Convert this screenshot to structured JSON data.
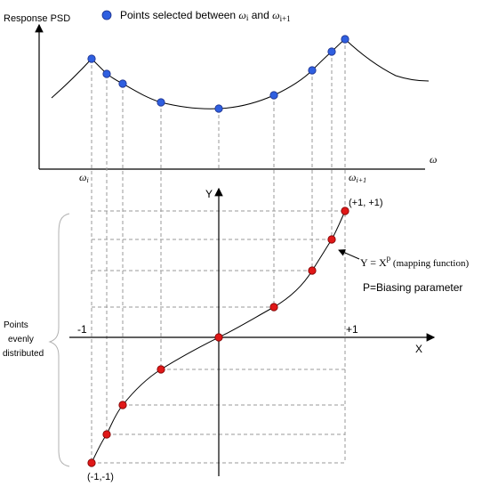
{
  "top": {
    "y_axis_label": "Response PSD",
    "legend": {
      "prefix": "Points selected between ",
      "w_i": "ω",
      "sub_i": "i",
      "and": " and ",
      "w_i1": "ω",
      "sub_i1": "i+1"
    },
    "x_axis_symbol": "ω",
    "left_tick": {
      "sym": "ω",
      "sub": "i"
    },
    "right_tick": {
      "sym": "ω",
      "sub": "i+1"
    },
    "colors": {
      "points": "#2f5fe0"
    }
  },
  "bottom": {
    "y_axis_label": "Y",
    "x_axis_label": "X",
    "minus_one": "-1",
    "plus_one": "+1",
    "corner_top_right": "(+1, +1)",
    "corner_bottom_left": "(-1,-1)",
    "mapping_function": {
      "lhs": "Y = X",
      "exp": "p",
      "note": " (mapping function)"
    },
    "biasing": "P=Biasing parameter",
    "side_note": [
      "Points",
      "evenly",
      "distributed"
    ],
    "colors": {
      "points": "#e01818"
    }
  }
}
